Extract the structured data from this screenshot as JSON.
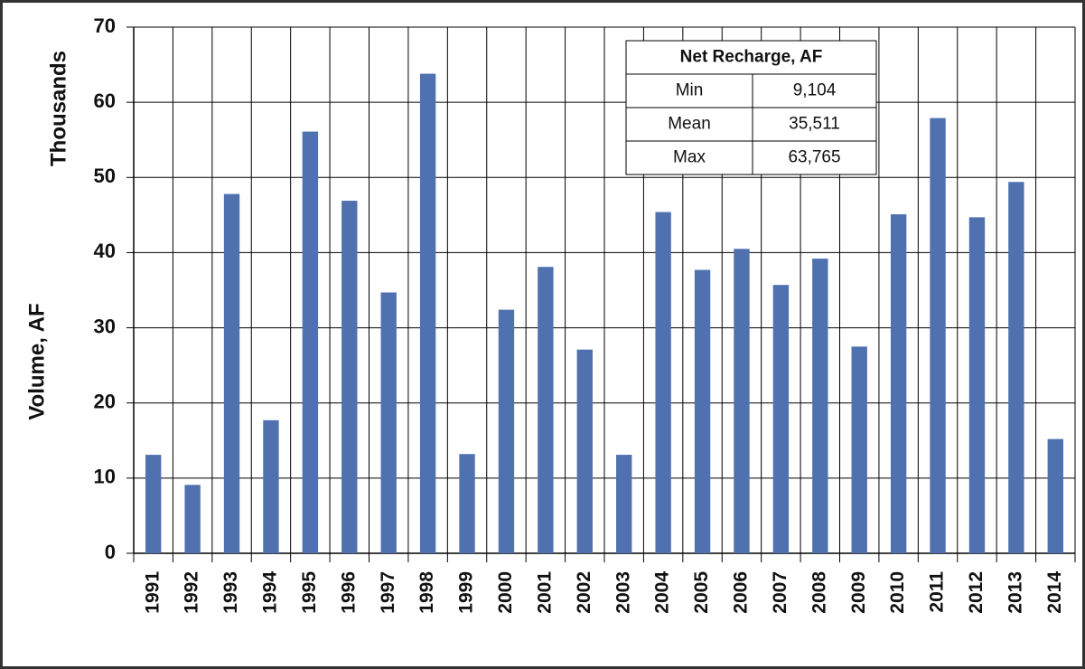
{
  "chart_data": {
    "type": "bar",
    "y_label": "Volume, AF",
    "y_unit_label": "Thousands",
    "categories": [
      "1991",
      "1992",
      "1993",
      "1994",
      "1995",
      "1996",
      "1997",
      "1998",
      "1999",
      "2000",
      "2001",
      "2002",
      "2003",
      "2004",
      "2005",
      "2006",
      "2007",
      "2008",
      "2009",
      "2010",
      "2011",
      "2012",
      "2013",
      "2014"
    ],
    "values": [
      13.1,
      9.1,
      47.8,
      17.7,
      56.1,
      46.9,
      34.7,
      63.8,
      13.2,
      32.4,
      38.1,
      27.1,
      13.1,
      45.4,
      37.7,
      40.5,
      35.7,
      39.2,
      27.5,
      45.1,
      57.9,
      44.7,
      49.4,
      15.2
    ],
    "color": "#4f71b0",
    "ylim": [
      0,
      70
    ],
    "yticks": [
      0,
      10,
      20,
      30,
      40,
      50,
      60,
      70
    ],
    "grid": true,
    "table": {
      "title": "Net Recharge, AF",
      "rows": [
        [
          "Min",
          "9,104"
        ],
        [
          "Mean",
          "35,511"
        ],
        [
          "Max",
          "63,765"
        ]
      ]
    }
  }
}
